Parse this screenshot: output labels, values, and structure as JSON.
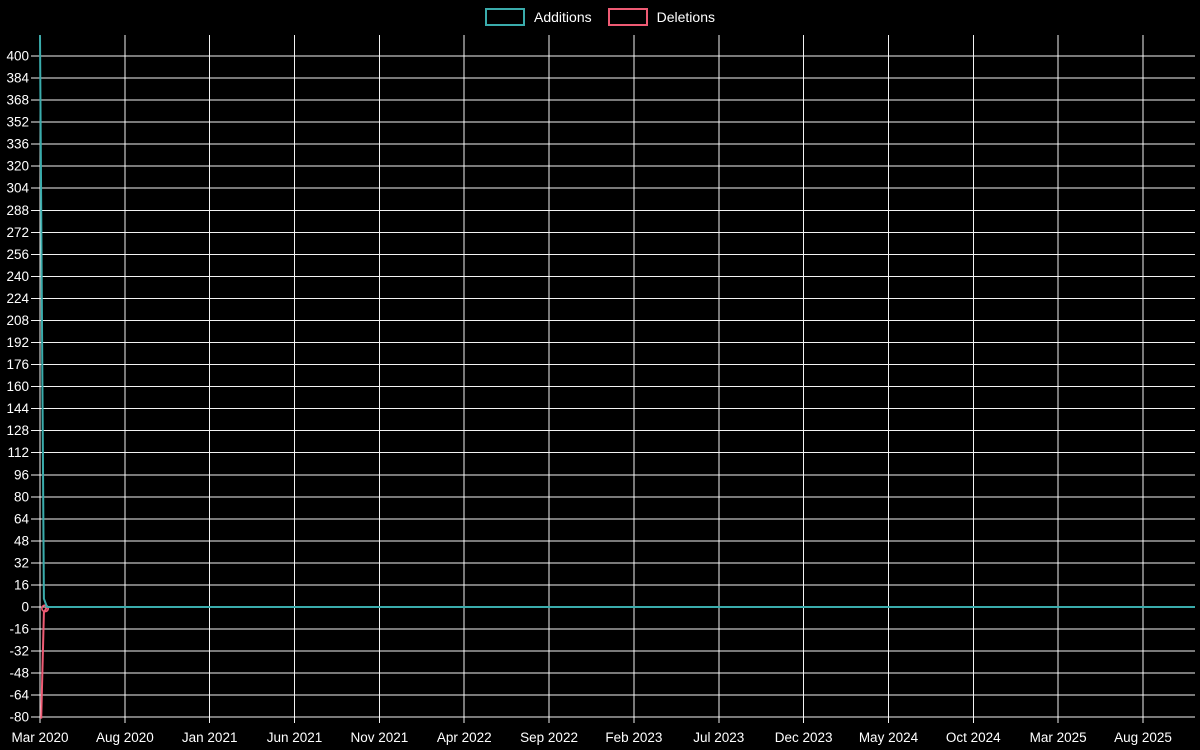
{
  "chart_data": {
    "type": "line",
    "title": "",
    "xlabel": "",
    "ylabel": "",
    "background": "#000000",
    "text_color": "#ffffff",
    "grid_color": "#ffffff",
    "grid": true,
    "legend_position": "top-center",
    "legend": [
      {
        "label": "Additions",
        "color": "#3aacac"
      },
      {
        "label": "Deletions",
        "color": "#ef5b74"
      }
    ],
    "x_tick_labels": [
      "Mar 2020",
      "Aug 2020",
      "Jan 2021",
      "Jun 2021",
      "Nov 2021",
      "Apr 2022",
      "Sep 2022",
      "Feb 2023",
      "Jul 2023",
      "Dec 2023",
      "May 2024",
      "Oct 2024",
      "Mar 2025",
      "Aug 2025"
    ],
    "y_ticks": [
      400,
      384,
      368,
      352,
      336,
      320,
      304,
      288,
      272,
      256,
      240,
      224,
      208,
      192,
      176,
      160,
      144,
      128,
      112,
      96,
      80,
      64,
      48,
      32,
      16,
      0,
      -16,
      -32,
      -48,
      -64,
      -80
    ],
    "ylim": [
      -84,
      416
    ],
    "weeks_per_xtick_interval": 21.73,
    "data_points": [
      {
        "week": "2020-03 week 1",
        "additions": 415,
        "deletions": -81
      },
      {
        "week": "2020-03 week 2",
        "additions": 6,
        "deletions": -4
      },
      {
        "week": "all later weeks through Aug 2025",
        "additions": 0,
        "deletions": 0
      }
    ],
    "series": [
      {
        "name": "Additions",
        "color": "#3aacac",
        "x_weeks": [
          0,
          1,
          1.8,
          296
        ],
        "values": [
          415,
          6,
          0,
          0
        ]
      },
      {
        "name": "Deletions",
        "color": "#ef5b74",
        "x_weeks": [
          0.3,
          1,
          1.8,
          296
        ],
        "values": [
          -81,
          -4,
          0,
          0
        ],
        "marker": {
          "x_week": 1.3,
          "value": -1,
          "radius": 3.2
        }
      }
    ]
  }
}
